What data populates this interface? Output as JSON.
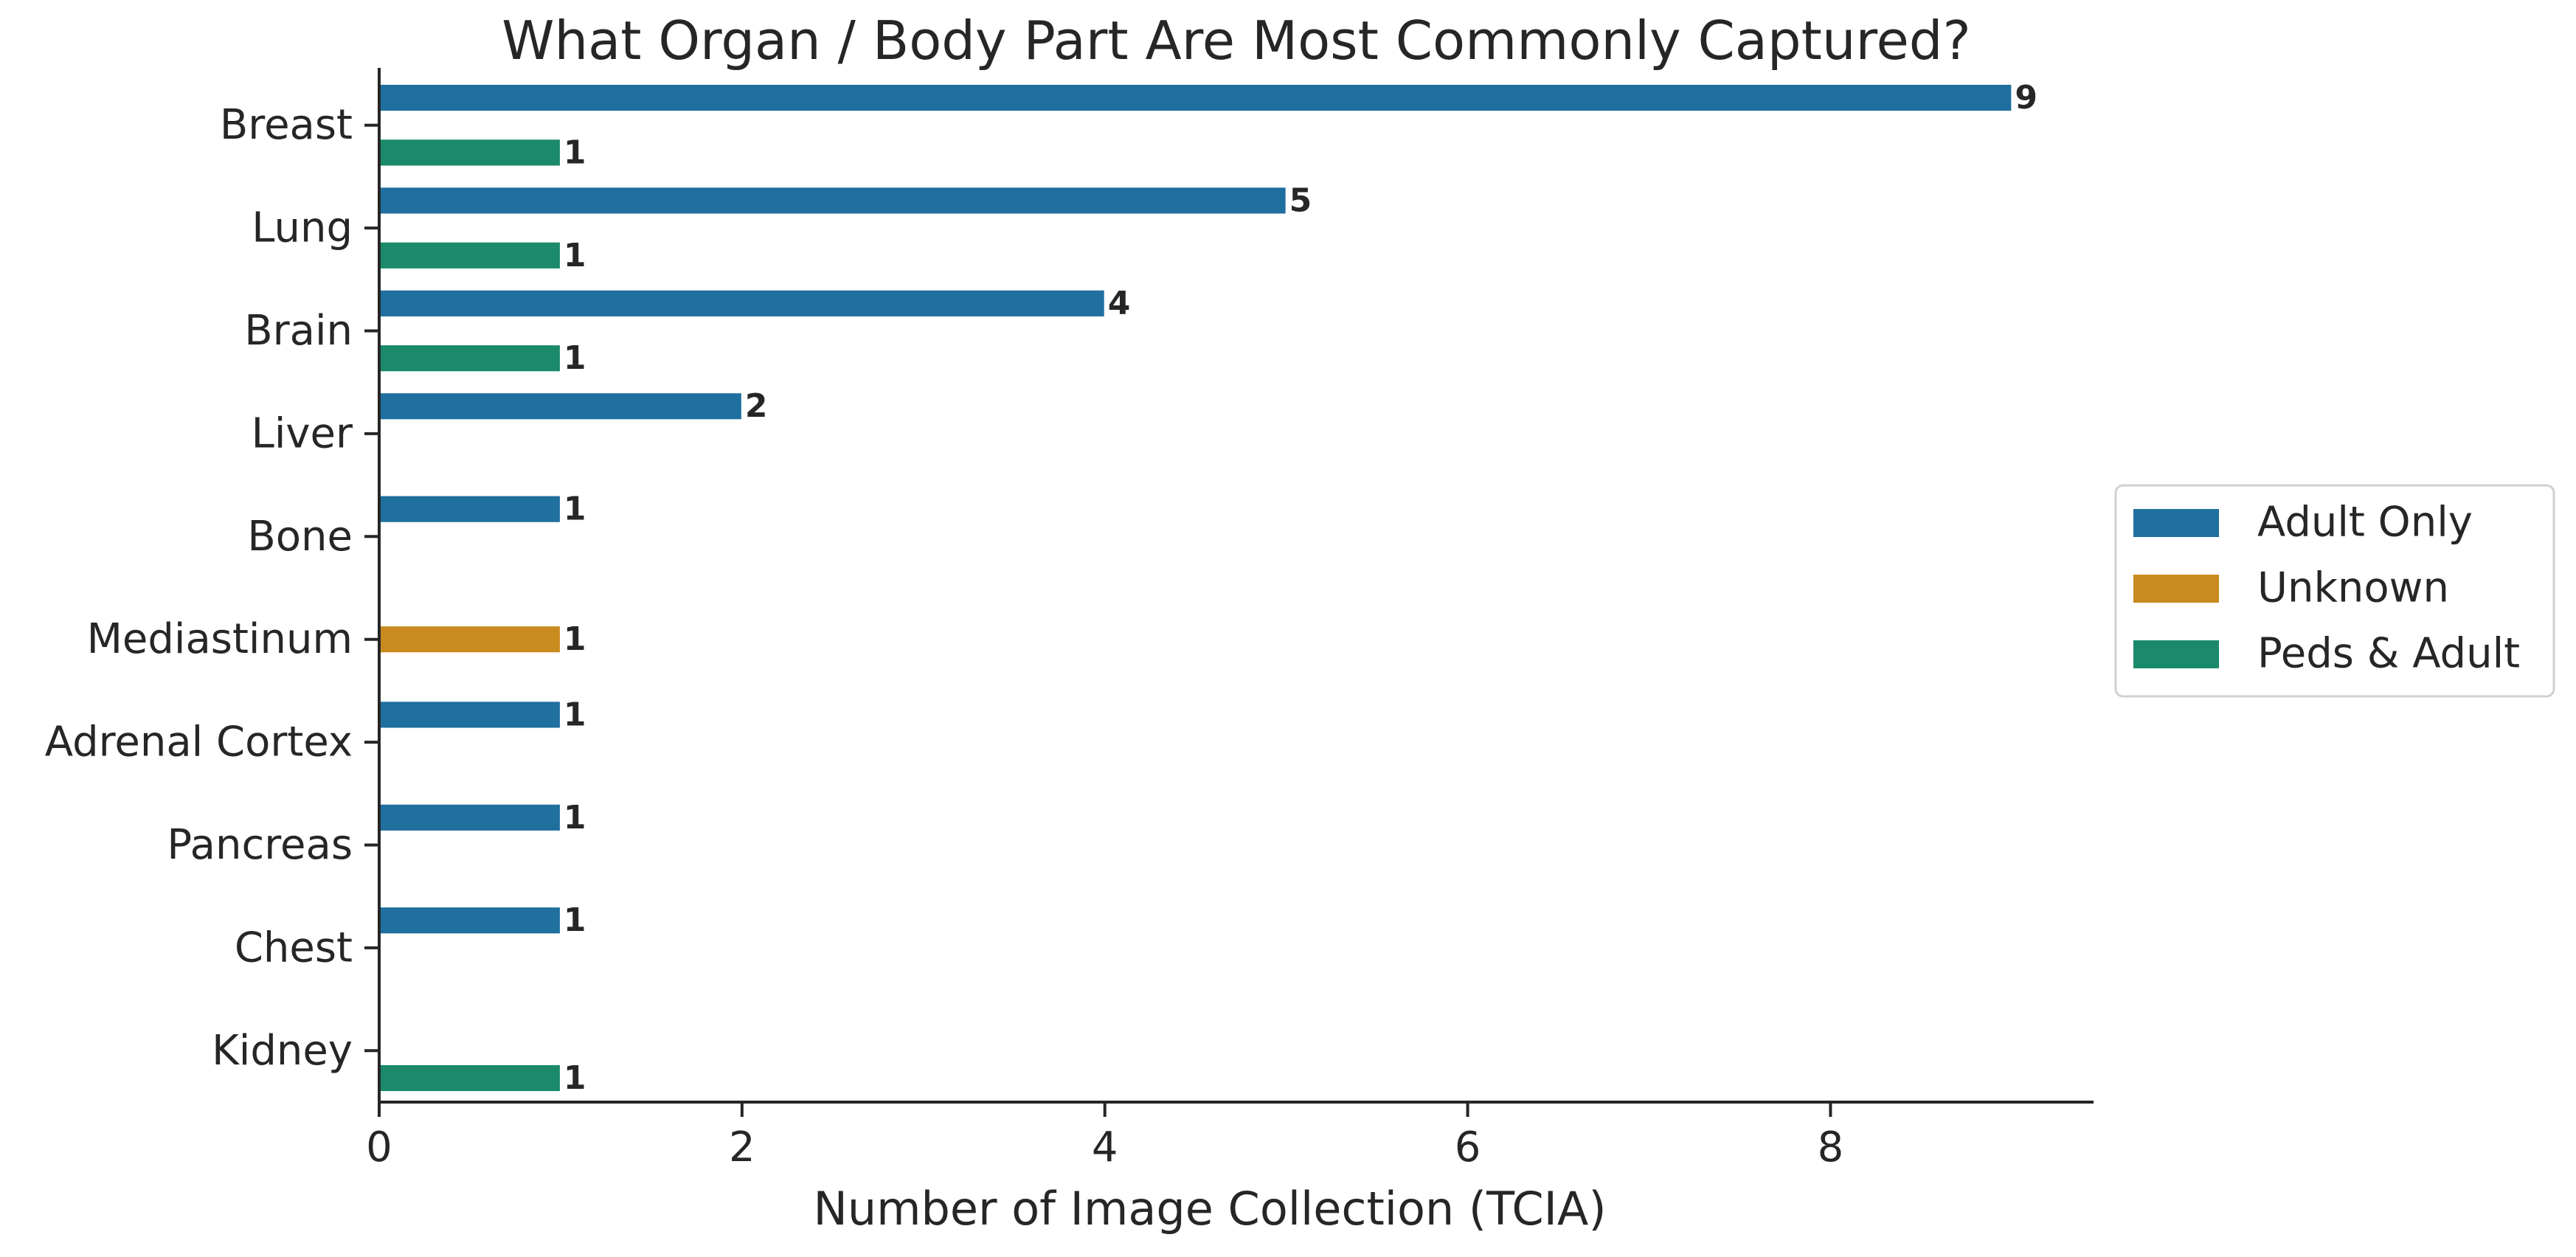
{
  "chart_data": {
    "type": "bar",
    "orientation": "horizontal",
    "title": "What Organ / Body Part Are Most Commonly Captured?",
    "xlabel": "Number of Image Collection (TCIA)",
    "ylabel": "",
    "xlim": [
      0,
      9.45
    ],
    "x_ticks": [
      0,
      2,
      4,
      6,
      8
    ],
    "categories": [
      "Breast",
      "Lung",
      "Brain",
      "Liver",
      "Bone",
      "Mediastinum",
      "Adrenal Cortex",
      "Pancreas",
      "Chest",
      "Kidney"
    ],
    "series": [
      {
        "name": "Adult Only",
        "color": "#1f6f9f",
        "values": [
          9,
          5,
          4,
          2,
          1,
          null,
          1,
          1,
          1,
          null
        ]
      },
      {
        "name": "Unknown",
        "color": "#c98a1f",
        "values": [
          null,
          null,
          null,
          null,
          null,
          1,
          null,
          null,
          null,
          null
        ]
      },
      {
        "name": "Peds & Adult",
        "color": "#1a8a6b",
        "values": [
          1,
          1,
          1,
          null,
          null,
          null,
          null,
          null,
          null,
          1
        ]
      }
    ],
    "data_labels": true,
    "grid": false,
    "legend_position": "right"
  }
}
